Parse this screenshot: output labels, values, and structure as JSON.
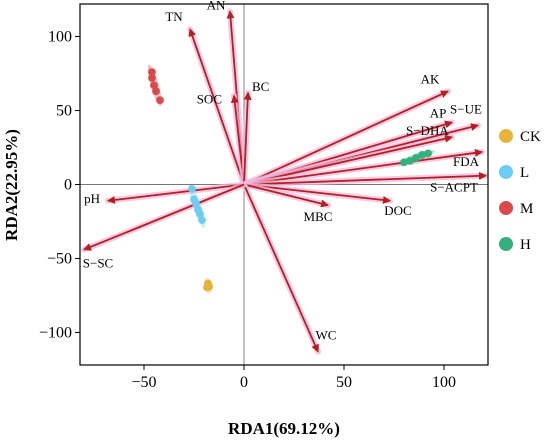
{
  "chart_data": {
    "type": "scatter",
    "subtype": "rda-biplot",
    "xlabel": "RDA1(69.12%)",
    "ylabel": "RDA2(22.95%)",
    "xlim": [
      -82,
      122
    ],
    "ylim": [
      -122,
      122
    ],
    "x_ticks": [
      -50,
      0,
      50,
      100
    ],
    "y_ticks": [
      -100,
      -50,
      0,
      50,
      100
    ],
    "x_tick_labels": [
      "−50",
      "0",
      "50",
      "100"
    ],
    "y_tick_labels": [
      "−100",
      "−50",
      "0",
      "50",
      "100"
    ],
    "zero_lines": true,
    "grid": false,
    "legend_position": "right",
    "vector_color": "#b2201f",
    "vector_glow": "#f2b8dd",
    "vectors": [
      {
        "label": "AN",
        "x": -7,
        "y": 117
      },
      {
        "label": "TN",
        "x": -27,
        "y": 105
      },
      {
        "label": "SOC",
        "x": -5,
        "y": 60
      },
      {
        "label": "BC",
        "x": 2,
        "y": 62
      },
      {
        "label": "AK",
        "x": 102,
        "y": 63
      },
      {
        "label": "AP",
        "x": 104,
        "y": 42
      },
      {
        "label": "S−UE",
        "x": 117,
        "y": 40
      },
      {
        "label": "S−DHA",
        "x": 104,
        "y": 32
      },
      {
        "label": "FDA",
        "x": 119,
        "y": 22
      },
      {
        "label": "S−ACPT",
        "x": 121,
        "y": 6
      },
      {
        "label": "DOC",
        "x": 73,
        "y": -11
      },
      {
        "label": "MBC",
        "x": 42,
        "y": -14
      },
      {
        "label": "WC",
        "x": 37,
        "y": -113
      },
      {
        "label": "pH",
        "x": -68,
        "y": -11
      },
      {
        "label": "S−SC",
        "x": -80,
        "y": -44
      }
    ],
    "series": [
      {
        "name": "CK",
        "color": "#e8b33a",
        "points": [
          [
            -18,
            -67
          ],
          [
            -18,
            -68
          ],
          [
            -17.5,
            -69
          ],
          [
            -18.5,
            -69.5
          ],
          [
            -17.8,
            -68.5
          ]
        ]
      },
      {
        "name": "L",
        "color": "#6ccdf4",
        "points": [
          [
            -26,
            -3
          ],
          [
            -25,
            -10
          ],
          [
            -24,
            -13
          ],
          [
            -23,
            -17
          ],
          [
            -22,
            -20
          ],
          [
            -21,
            -24
          ]
        ]
      },
      {
        "name": "M",
        "color": "#d94b4b",
        "points": [
          [
            -46,
            76
          ],
          [
            -46,
            72
          ],
          [
            -45,
            67
          ],
          [
            -44,
            63
          ],
          [
            -42,
            57
          ]
        ]
      },
      {
        "name": "H",
        "color": "#33b07b",
        "points": [
          [
            80,
            15
          ],
          [
            83,
            16
          ],
          [
            86,
            18
          ],
          [
            89,
            20
          ],
          [
            92,
            21
          ]
        ]
      }
    ]
  }
}
